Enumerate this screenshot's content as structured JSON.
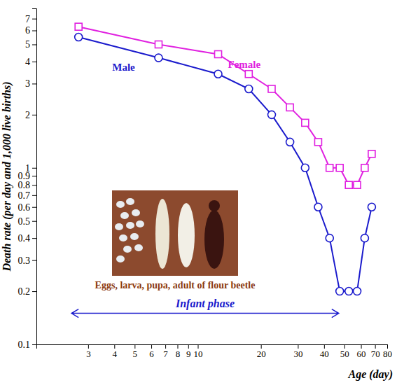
{
  "chart_data": {
    "type": "line",
    "x_label": "Age (day)",
    "y_label": "Death rate (per day and 1,000 live births)",
    "log": true,
    "grid": false,
    "x": [
      2.7,
      6.5,
      12.5,
      17.5,
      22.5,
      27.5,
      32.5,
      37.5,
      42.5,
      47.5,
      52.5,
      57.5,
      62.5,
      67.5
    ],
    "series": [
      {
        "name": "Male",
        "color": "#1a1acc",
        "marker": "circle",
        "line_style": "solid",
        "values": [
          5.5,
          4.2,
          3.4,
          2.8,
          2.0,
          1.4,
          1.0,
          0.6,
          0.4,
          0.2,
          0.2,
          0.2,
          0.4,
          0.6
        ]
      },
      {
        "name": "Female",
        "color": "#e020e0",
        "marker": "square",
        "line_style": "solid",
        "values": [
          6.3,
          5.0,
          4.4,
          3.4,
          2.8,
          2.2,
          1.8,
          1.4,
          1.0,
          1.0,
          0.8,
          0.8,
          1.0,
          1.2
        ]
      }
    ],
    "xlim": [
      1.7,
      80
    ],
    "xticks": [
      3,
      4,
      5,
      6,
      7,
      8,
      9,
      10,
      20,
      30,
      40,
      50,
      60,
      70,
      80
    ],
    "ylim": [
      0.1,
      8
    ],
    "yticks": [
      0.1,
      0.2,
      0.3,
      0.4,
      0.5,
      0.6,
      0.7,
      0.8,
      0.9,
      1,
      2,
      3,
      4,
      5,
      6,
      7
    ],
    "annotations": [
      {
        "text": "Eggs, larva, pupa, adult of flour beetle"
      },
      {
        "text": "Infant phase",
        "x": [
          2.5,
          47
        ],
        "y": 0.15
      }
    ]
  }
}
